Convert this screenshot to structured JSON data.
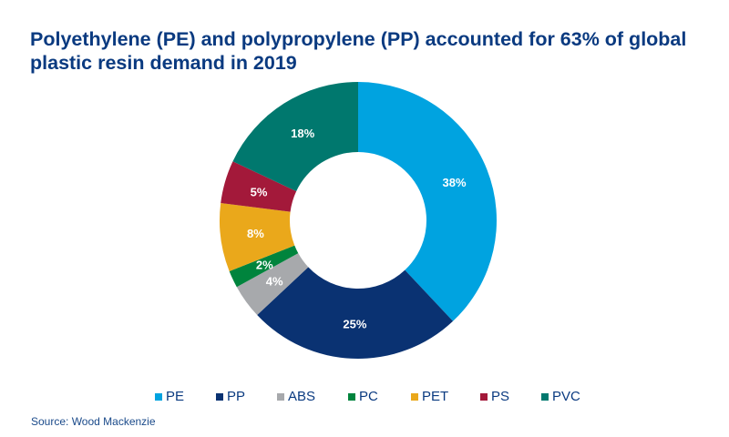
{
  "chart_data": {
    "type": "pie",
    "donut": true,
    "title": "Polyethylene (PE) and polypropylene (PP) accounted for 63% of global plastic resin demand in 2019",
    "categories": [
      "PE",
      "PP",
      "ABS",
      "PC",
      "PET",
      "PS",
      "PVC"
    ],
    "values": [
      38,
      25,
      4,
      2,
      8,
      5,
      18
    ],
    "labels": [
      "38%",
      "25%",
      "4%",
      "2%",
      "8%",
      "5%",
      "18%"
    ],
    "colors": [
      "#00a3e0",
      "#0a3272",
      "#a7a9ac",
      "#00843d",
      "#eaa81b",
      "#a3193a",
      "#00786e"
    ],
    "legend_position": "bottom",
    "source": "Source: Wood Mackenzie"
  }
}
